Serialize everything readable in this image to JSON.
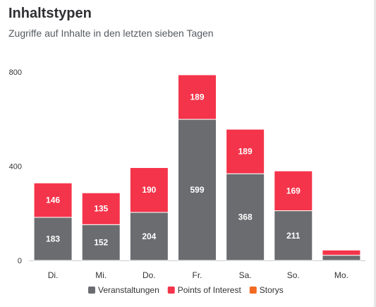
{
  "header": {
    "title": "Inhaltstypen",
    "subtitle": "Zugriffe auf Inhalte in den letzten sieben Tagen"
  },
  "chart_data": {
    "type": "bar",
    "stacked": true,
    "categories": [
      "Di.",
      "Mi.",
      "Do.",
      "Fr.",
      "Sa.",
      "So.",
      "Mo."
    ],
    "series": [
      {
        "name": "Veranstaltungen",
        "color": "#6b6c70",
        "values": [
          183,
          152,
          204,
          599,
          368,
          211,
          22
        ]
      },
      {
        "name": "Points of Interest",
        "color": "#f4344a",
        "values": [
          146,
          135,
          190,
          189,
          189,
          169,
          22
        ]
      },
      {
        "name": "Storys",
        "color": "#f26a21",
        "values": [
          0,
          0,
          0,
          0,
          0,
          0,
          0
        ]
      }
    ],
    "data_labels": {
      "Veranstaltungen": [
        "183",
        "152",
        "204",
        "599",
        "368",
        "211",
        ""
      ],
      "Points of Interest": [
        "146",
        "135",
        "190",
        "189",
        "189",
        "169",
        ""
      ]
    },
    "yticks": [
      0,
      400,
      800
    ],
    "ylim": [
      0,
      800
    ],
    "legend_position": "bottom"
  }
}
